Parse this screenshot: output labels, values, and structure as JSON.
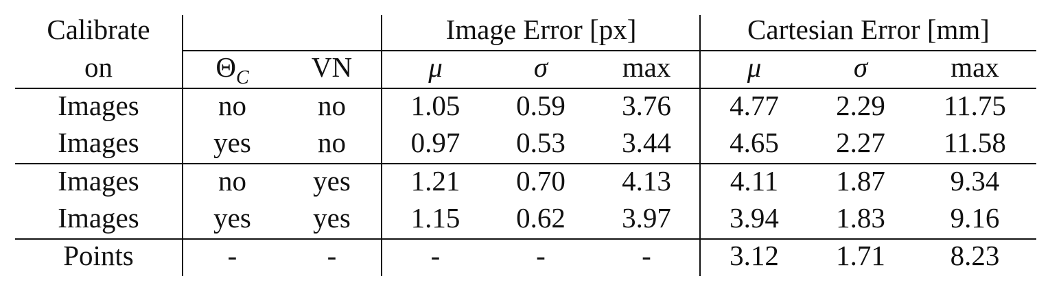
{
  "table": {
    "header": {
      "calibrate_line1": "Calibrate",
      "calibrate_line2": "on",
      "theta_symbol": "Θ",
      "theta_subscript": "C",
      "vn": "VN",
      "image_error_group": "Image Error [px]",
      "cartesian_error_group": "Cartesian Error [mm]",
      "image_mu": "μ",
      "image_sigma": "σ",
      "image_max": "max",
      "cart_mu": "μ",
      "cart_sigma": "σ",
      "cart_max": "max"
    },
    "rows": [
      {
        "calibrate_on": "Images",
        "theta_c": "no",
        "vn": "no",
        "img_mu": "1.05",
        "img_sigma": "0.59",
        "img_max": "3.76",
        "cart_mu": "4.77",
        "cart_sigma": "2.29",
        "cart_max": "11.75"
      },
      {
        "calibrate_on": "Images",
        "theta_c": "yes",
        "vn": "no",
        "img_mu": "0.97",
        "img_sigma": "0.53",
        "img_max": "3.44",
        "cart_mu": "4.65",
        "cart_sigma": "2.27",
        "cart_max": "11.58"
      },
      {
        "calibrate_on": "Images",
        "theta_c": "no",
        "vn": "yes",
        "img_mu": "1.21",
        "img_sigma": "0.70",
        "img_max": "4.13",
        "cart_mu": "4.11",
        "cart_sigma": "1.87",
        "cart_max": "9.34"
      },
      {
        "calibrate_on": "Images",
        "theta_c": "yes",
        "vn": "yes",
        "img_mu": "1.15",
        "img_sigma": "0.62",
        "img_max": "3.97",
        "cart_mu": "3.94",
        "cart_sigma": "1.83",
        "cart_max": "9.16"
      },
      {
        "calibrate_on": "Points",
        "theta_c": "-",
        "vn": "-",
        "img_mu": "-",
        "img_sigma": "-",
        "img_max": "-",
        "cart_mu": "3.12",
        "cart_sigma": "1.71",
        "cart_max": "8.23"
      }
    ]
  }
}
